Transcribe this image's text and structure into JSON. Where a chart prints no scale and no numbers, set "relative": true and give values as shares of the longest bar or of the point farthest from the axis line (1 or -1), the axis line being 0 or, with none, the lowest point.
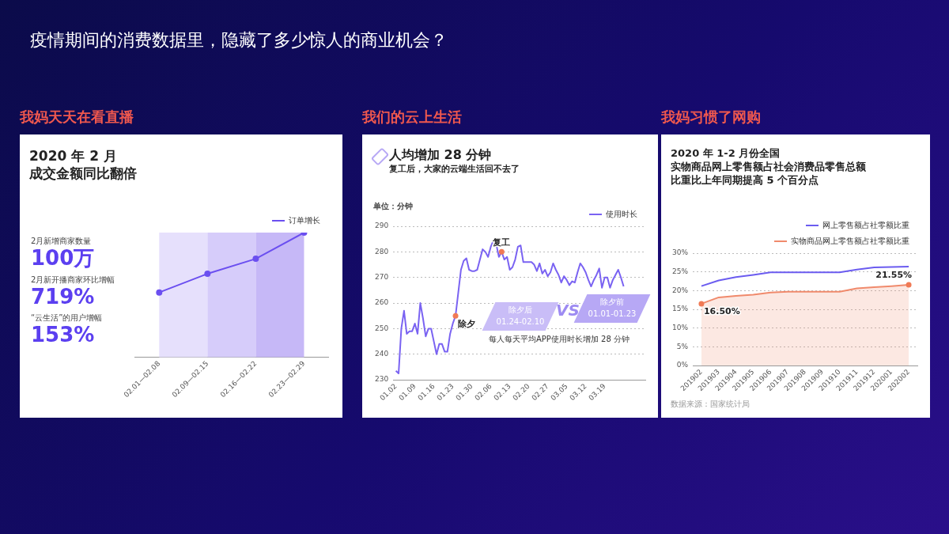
{
  "chart_data": [
    {
      "type": "line",
      "relative": true,
      "title": "我妈天天在看直播",
      "subtitle": "2020 年 2 月",
      "categories": [
        "02.01—02.08",
        "02.09—02.15",
        "02.16—02.22",
        "02.23—02.29"
      ],
      "series": [
        {
          "name": "订单增长",
          "color": "#6b4ff0",
          "values": [
            0.52,
            0.67,
            0.79,
            1
          ]
        }
      ],
      "bands": [
        {
          "axis": "x",
          "from": "02.01—02.08",
          "to": "02.09—02.15",
          "color": "#e6e0fc"
        },
        {
          "axis": "x",
          "from": "02.09—02.15",
          "to": "02.16—02.22",
          "color": "#d6ccfa"
        },
        {
          "axis": "x",
          "from": "02.16—02.22",
          "to": "02.23—02.29",
          "color": "#c6b8f7"
        }
      ],
      "marker": "circle",
      "legend": "top right",
      "annotations": [
        "疫情期间的消费数据里，隐藏了多少惊人的商业机会？",
        "成交金额同比翻倍",
        "2月新增商家数量",
        "100万",
        "2月新开播商家环比增幅",
        "719%",
        "“云生活”的用户增幅",
        "153%"
      ]
    },
    {
      "type": "line",
      "title": "我们的云上生活",
      "subtitle": "人均增加 28 分钟",
      "ylabel": "单位：分钟",
      "series": [
        {
          "name": "使用时长",
          "color": "#7a63f2",
          "x": [
            "--01-02",
            "--01-03",
            "--01-04",
            "--01-05",
            "--01-06",
            "--01-07",
            "--01-08",
            "--01-09",
            "--01-10",
            "--01-11",
            "--01-12",
            "--01-13",
            "--01-14",
            "--01-15",
            "--01-16",
            "--01-17",
            "--01-18",
            "--01-19",
            "--01-20",
            "--01-21",
            "--01-22",
            "--01-23",
            "--01-24",
            "--01-25",
            "--01-26",
            "--01-27",
            "--01-28",
            "--01-29",
            "--01-30",
            "--01-31",
            "--02-01",
            "--02-02",
            "--02-03",
            "--02-04",
            "--02-05",
            "--02-06",
            "--02-07",
            "--02-08",
            "--02-09",
            "--02-10",
            "--02-11",
            "--02-12",
            "--02-13",
            "--02-14",
            "--02-15",
            "--02-16",
            "--02-17",
            "--02-18",
            "--02-19",
            "--02-20",
            "--02-21",
            "--02-22",
            "--02-23",
            "--02-24",
            "--02-25",
            "--02-26",
            "--02-27",
            "--02-28",
            "--02-29",
            "--03-01",
            "--03-02",
            "--03-03",
            "--03-04",
            "--03-05",
            "--03-06",
            "--03-07",
            "--03-08",
            "--03-09",
            "--03-10",
            "--03-11",
            "--03-12",
            "--03-13",
            "--03-14",
            "--03-15",
            "--03-16",
            "--03-17",
            "--03-18",
            "--03-19",
            "--03-20",
            "--03-21",
            "--03-22",
            "--03-23",
            "--03-24",
            "--03-25",
            "--03-26"
          ],
          "values": [
            233.5,
            232.5,
            250,
            257,
            248,
            249,
            249,
            252,
            248,
            260,
            254,
            247,
            250,
            250,
            245,
            240,
            244,
            244,
            241,
            241,
            248,
            252,
            255,
            264,
            273,
            276.5,
            277.5,
            273,
            272.5,
            272.5,
            273,
            277,
            281,
            280,
            278,
            282,
            284.5,
            283,
            278,
            280,
            277,
            278,
            273,
            274,
            277,
            282,
            282.5,
            276,
            276,
            276,
            276,
            275,
            272.5,
            275.5,
            271.5,
            273,
            270.5,
            272,
            275.5,
            273,
            271,
            268,
            270.5,
            269,
            267,
            268.5,
            268,
            272,
            275.5,
            274,
            272,
            269,
            266.5,
            269,
            271,
            273.5,
            266,
            270,
            270,
            266,
            269,
            271,
            273,
            270,
            266.5
          ]
        }
      ],
      "xlim": [
        "--01-01",
        "--04-03"
      ],
      "xticks": [
        {
          "value": "--01-02",
          "label": "01.02"
        },
        {
          "value": "--01-09",
          "label": "01.09"
        },
        {
          "value": "--01-16",
          "label": "01.16"
        },
        {
          "value": "--01-23",
          "label": "01.23"
        },
        {
          "value": "--01-30",
          "label": "01.30"
        },
        {
          "value": "--02-06",
          "label": "02.06"
        },
        {
          "value": "--02-13",
          "label": "02.13"
        },
        {
          "value": "--02-20",
          "label": "02.20"
        },
        {
          "value": "--02-27",
          "label": "02.27"
        },
        {
          "value": "--03-05",
          "label": "03.05"
        },
        {
          "value": "--03-12",
          "label": "03.12"
        },
        {
          "value": "--03-19",
          "label": "03.19"
        }
      ],
      "ylim": [
        230,
        290
      ],
      "yticks": [
        230,
        240,
        250,
        260,
        270,
        280,
        290
      ],
      "grid": "y",
      "legend": "top right",
      "annotations": [
        {
          "text": "除夕",
          "x": "--01-24",
          "y": 255
        },
        {
          "text": "复工",
          "x": "--02-10",
          "y": 280
        },
        "复工后，大家的云端生活回不去了",
        "除夕后",
        "01.24-02.10",
        "VS",
        "除夕前",
        "01.01-01.23",
        "每人每天平均APP使用时长增加 28 分钟"
      ]
    },
    {
      "type": "line",
      "title": "我妈习惯了网购",
      "subtitle": "2020 年 1-2 月份全国",
      "categories": [
        "201902",
        "201903",
        "201904",
        "201905",
        "201906",
        "201907",
        "201908",
        "201909",
        "201910",
        "201911",
        "201912",
        "202001",
        "202002"
      ],
      "series": [
        {
          "name": "网上零售额占社零额比重",
          "color": "#6b5cf0",
          "values": [
            21.2,
            22.7,
            23.6,
            24.2,
            24.9,
            24.9,
            24.9,
            24.9,
            24.9,
            25.6,
            26.2,
            26.3,
            26.4
          ]
        },
        {
          "name": "实物商品网上零售额占社零额比重",
          "type": "area",
          "color": "#f08a6c",
          "values": [
            16.5,
            18.2,
            18.6,
            18.9,
            19.5,
            19.7,
            19.7,
            19.7,
            19.7,
            20.6,
            20.9,
            21.2,
            21.55
          ]
        }
      ],
      "ylim": [
        0,
        30
      ],
      "yticks": [
        {
          "value": 0,
          "label": "0%"
        },
        {
          "value": 5,
          "label": "5%"
        },
        {
          "value": 10,
          "label": "10%"
        },
        {
          "value": 15,
          "label": "15%"
        },
        {
          "value": 20,
          "label": "20%"
        },
        {
          "value": 25,
          "label": "25%"
        },
        {
          "value": 30,
          "label": "30%"
        }
      ],
      "grid": "y",
      "legend": "top right",
      "annotations": [
        {
          "text": "16.50%",
          "x": "201902",
          "y": 16.5
        },
        {
          "text": "21.55%",
          "x": "202002",
          "y": 21.55
        },
        "实物商品网上零售额占社会消费品零售总额",
        "比重比上年同期提高 5 个百分点",
        "数据来源：国家统计局"
      ]
    }
  ]
}
